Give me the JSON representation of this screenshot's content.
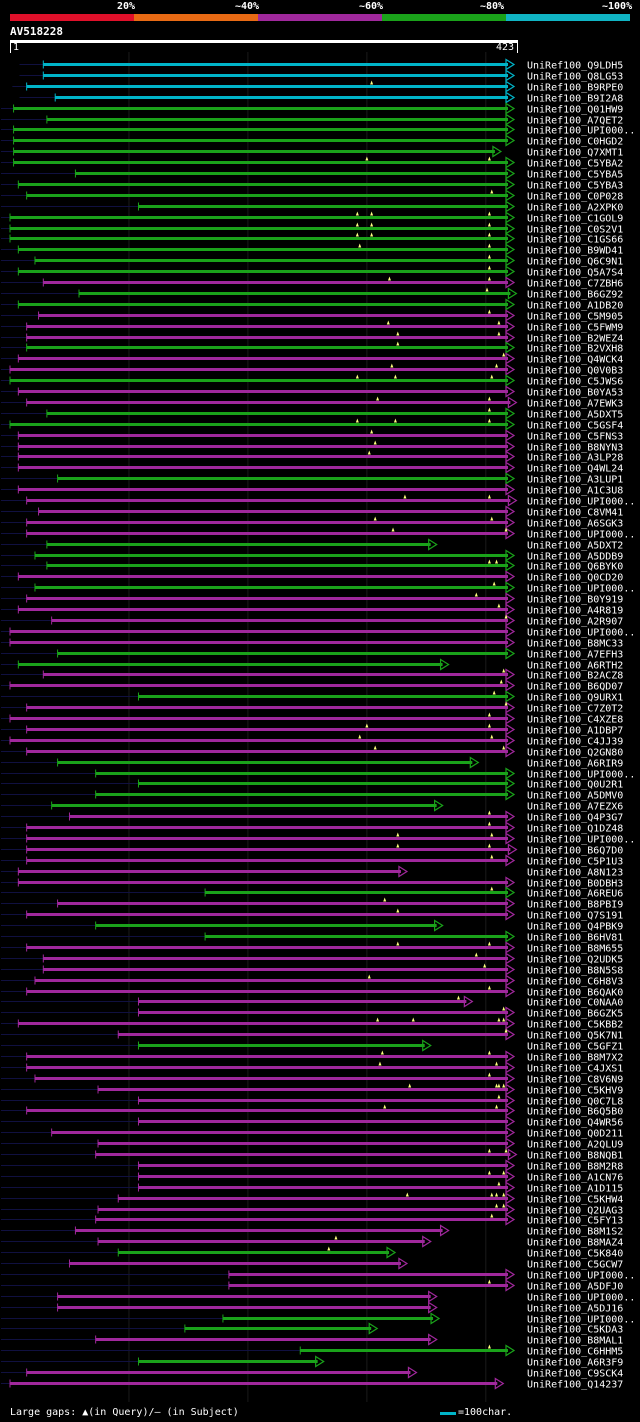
{
  "legend": {
    "bins": [
      {
        "label": "20%",
        "color": "#e0102a"
      },
      {
        "label": "~40%",
        "color": "#e86a14"
      },
      {
        "label": "~60%",
        "color": "#a0289c"
      },
      {
        "label": "~80%",
        "color": "#1aa21a"
      },
      {
        "label": "~100%",
        "color": "#10b4c4"
      }
    ]
  },
  "query": {
    "name": "AV518228",
    "start_label": "1",
    "end_label": "423",
    "length": 423
  },
  "colors": {
    "cyan": "#00b4c8",
    "green": "#1aa21a",
    "magenta": "#a0289c",
    "grid": "#1a1a1a",
    "tail": "#101040",
    "gap_marker": "#ffff80"
  },
  "footer": {
    "gaps_text": "Large gaps: ▲(in Query)/– (in Subject)",
    "scale_text": "=100char."
  },
  "hits": [
    {
      "name": "UniRef100_Q9LDH5",
      "c": "cyan",
      "s": 29,
      "e": 423,
      "t": 9
    },
    {
      "name": "UniRef100_Q8LG53",
      "c": "cyan",
      "s": 29,
      "e": 423,
      "t": 9
    },
    {
      "name": "UniRef100_B9RPE0",
      "c": "cyan",
      "s": 15,
      "e": 423,
      "t": 3,
      "g": [
        305
      ]
    },
    {
      "name": "UniRef100_B9I2A8",
      "c": "cyan",
      "s": 39,
      "e": 423,
      "t": 9
    },
    {
      "name": "UniRef100_Q01HW9",
      "c": "green",
      "s": 4,
      "e": 423,
      "t": 0
    },
    {
      "name": "UniRef100_A7QET2",
      "c": "green",
      "s": 32,
      "e": 423,
      "t": 0
    },
    {
      "name": "UniRef100_UPI000..",
      "c": "green",
      "s": 4,
      "e": 423,
      "t": 0
    },
    {
      "name": "UniRef100_C0HGD2",
      "c": "green",
      "s": 4,
      "e": 423,
      "t": 0
    },
    {
      "name": "UniRef100_Q7XMT1",
      "c": "green",
      "s": 4,
      "e": 412,
      "t": 0
    },
    {
      "name": "UniRef100_C5YBA2",
      "c": "green",
      "s": 4,
      "e": 423,
      "t": 0,
      "g": [
        301,
        404
      ]
    },
    {
      "name": "UniRef100_C5YBA5",
      "c": "green",
      "s": 56,
      "e": 423,
      "t": 0
    },
    {
      "name": "UniRef100_C5YBA3",
      "c": "green",
      "s": 8,
      "e": 423,
      "t": 0
    },
    {
      "name": "UniRef100_C0P028",
      "c": "green",
      "s": 15,
      "e": 423,
      "t": 0,
      "g": [
        406
      ]
    },
    {
      "name": "UniRef100_A2XPK0",
      "c": "green",
      "s": 109,
      "e": 423,
      "t": 0
    },
    {
      "name": "UniRef100_C1GOL9",
      "c": "green",
      "s": 1,
      "e": 423,
      "t": 0,
      "g": [
        293,
        305,
        404
      ]
    },
    {
      "name": "UniRef100_C0S2V1",
      "c": "green",
      "s": 1,
      "e": 423,
      "t": 0,
      "g": [
        293,
        305,
        404
      ]
    },
    {
      "name": "UniRef100_C1GS66",
      "c": "green",
      "s": 1,
      "e": 423,
      "t": 0,
      "g": [
        293,
        305,
        404
      ]
    },
    {
      "name": "UniRef100_B9WD41",
      "c": "green",
      "s": 8,
      "e": 423,
      "t": 0,
      "g": [
        295,
        404
      ]
    },
    {
      "name": "UniRef100_Q6C9N1",
      "c": "green",
      "s": 22,
      "e": 423,
      "t": 0,
      "g": [
        404
      ]
    },
    {
      "name": "UniRef100_Q5A7S4",
      "c": "green",
      "s": 8,
      "e": 423,
      "t": 0,
      "g": [
        404
      ]
    },
    {
      "name": "UniRef100_C7ZBH6",
      "c": "magenta",
      "s": 29,
      "e": 423,
      "t": 0,
      "g": [
        320,
        404
      ]
    },
    {
      "name": "UniRef100_B6GZ92",
      "c": "green",
      "s": 59,
      "e": 425,
      "t": 0,
      "g": [
        402
      ]
    },
    {
      "name": "UniRef100_A1DB20",
      "c": "green",
      "s": 8,
      "e": 423,
      "t": 0
    },
    {
      "name": "UniRef100_C5M905",
      "c": "magenta",
      "s": 25,
      "e": 423,
      "t": 0,
      "g": [
        404
      ]
    },
    {
      "name": "UniRef100_C5FWM9",
      "c": "magenta",
      "s": 15,
      "e": 423,
      "t": 0,
      "g": [
        319,
        412
      ]
    },
    {
      "name": "UniRef100_B2WEZ4",
      "c": "magenta",
      "s": 15,
      "e": 423,
      "t": 0,
      "g": [
        327,
        412
      ]
    },
    {
      "name": "UniRef100_B2VXH8",
      "c": "green",
      "s": 15,
      "e": 423,
      "t": 0,
      "g": [
        327
      ]
    },
    {
      "name": "UniRef100_Q4WCK4",
      "c": "magenta",
      "s": 8,
      "e": 423,
      "t": 0,
      "g": [
        416
      ]
    },
    {
      "name": "UniRef100_Q0V0B3",
      "c": "magenta",
      "s": 1,
      "e": 423,
      "t": 0,
      "g": [
        322,
        410
      ]
    },
    {
      "name": "UniRef100_C5JWS6",
      "c": "green",
      "s": 1,
      "e": 423,
      "t": 0,
      "g": [
        293,
        325,
        406
      ]
    },
    {
      "name": "UniRef100_B0YA53",
      "c": "magenta",
      "s": 8,
      "e": 423,
      "t": 0
    },
    {
      "name": "UniRef100_A7EWK3",
      "c": "magenta",
      "s": 15,
      "e": 425,
      "t": 0,
      "g": [
        310,
        404
      ]
    },
    {
      "name": "UniRef100_A5DXT5",
      "c": "green",
      "s": 32,
      "e": 423,
      "t": 0,
      "g": [
        404
      ]
    },
    {
      "name": "UniRef100_C5GSF4",
      "c": "green",
      "s": 1,
      "e": 423,
      "t": 0,
      "g": [
        293,
        325,
        404
      ]
    },
    {
      "name": "UniRef100_C5FNS3",
      "c": "magenta",
      "s": 8,
      "e": 423,
      "t": 0,
      "g": [
        305
      ]
    },
    {
      "name": "UniRef100_B8NYN3",
      "c": "magenta",
      "s": 8,
      "e": 423,
      "t": 0,
      "g": [
        308
      ]
    },
    {
      "name": "UniRef100_A3LP28",
      "c": "magenta",
      "s": 8,
      "e": 423,
      "t": 0,
      "g": [
        303
      ]
    },
    {
      "name": "UniRef100_Q4WL24",
      "c": "magenta",
      "s": 8,
      "e": 423,
      "t": 0
    },
    {
      "name": "UniRef100_A3LUP1",
      "c": "green",
      "s": 41,
      "e": 423,
      "t": 0
    },
    {
      "name": "UniRef100_A1C3U8",
      "c": "magenta",
      "s": 8,
      "e": 423,
      "t": 0
    },
    {
      "name": "UniRef100_UPI000..",
      "c": "magenta",
      "s": 15,
      "e": 425,
      "t": 0,
      "g": [
        333,
        404
      ]
    },
    {
      "name": "UniRef100_C8VM41",
      "c": "magenta",
      "s": 25,
      "e": 423,
      "t": 0
    },
    {
      "name": "UniRef100_A6SGK3",
      "c": "magenta",
      "s": 15,
      "e": 423,
      "t": 0,
      "g": [
        308,
        406
      ]
    },
    {
      "name": "UniRef100_UPI000..",
      "c": "magenta",
      "s": 15,
      "e": 423,
      "t": 0,
      "g": [
        323,
        418
      ]
    },
    {
      "name": "UniRef100_A5DXT2",
      "c": "green",
      "s": 32,
      "e": 358,
      "t": 0
    },
    {
      "name": "UniRef100_A5DDB9",
      "c": "green",
      "s": 22,
      "e": 423,
      "t": 0
    },
    {
      "name": "UniRef100_Q6BYK0",
      "c": "green",
      "s": 32,
      "e": 423,
      "t": 0,
      "g": [
        404,
        410
      ]
    },
    {
      "name": "UniRef100_Q0CD20",
      "c": "magenta",
      "s": 8,
      "e": 423,
      "t": 0
    },
    {
      "name": "UniRef100_UPI000..",
      "c": "green",
      "s": 22,
      "e": 423,
      "t": 0,
      "g": [
        408
      ]
    },
    {
      "name": "UniRef100_B0Y919",
      "c": "magenta",
      "s": 15,
      "e": 423,
      "t": 0,
      "g": [
        393
      ]
    },
    {
      "name": "UniRef100_A4R819",
      "c": "magenta",
      "s": 8,
      "e": 423,
      "t": 0,
      "g": [
        412
      ]
    },
    {
      "name": "UniRef100_A2R907",
      "c": "magenta",
      "s": 36,
      "e": 423,
      "t": 0,
      "g": [
        418
      ]
    },
    {
      "name": "UniRef100_UPI000..",
      "c": "magenta",
      "s": 1,
      "e": 423,
      "t": 0
    },
    {
      "name": "UniRef100_B8MC33",
      "c": "magenta",
      "s": 1,
      "e": 423,
      "t": 0
    },
    {
      "name": "UniRef100_A7EFH3",
      "c": "green",
      "s": 41,
      "e": 423,
      "t": 0
    },
    {
      "name": "UniRef100_A6RTH2",
      "c": "green",
      "s": 8,
      "e": 368,
      "t": 0
    },
    {
      "name": "UniRef100_B2ACZ8",
      "c": "magenta",
      "s": 29,
      "e": 423,
      "t": 0,
      "g": [
        416
      ]
    },
    {
      "name": "UniRef100_B6QD07",
      "c": "magenta",
      "s": 1,
      "e": 423,
      "t": 0,
      "g": [
        414
      ]
    },
    {
      "name": "UniRef100_Q9URX1",
      "c": "green",
      "s": 109,
      "e": 423,
      "t": 0,
      "g": [
        408
      ]
    },
    {
      "name": "UniRef100_C7Z0T2",
      "c": "magenta",
      "s": 15,
      "e": 423,
      "t": 0,
      "g": [
        418
      ]
    },
    {
      "name": "UniRef100_C4XZE8",
      "c": "magenta",
      "s": 1,
      "e": 423,
      "t": 0,
      "g": [
        404
      ]
    },
    {
      "name": "UniRef100_A1DBP7",
      "c": "magenta",
      "s": 15,
      "e": 423,
      "t": 0,
      "g": [
        301,
        404
      ]
    },
    {
      "name": "UniRef100_C4JJ39",
      "c": "magenta",
      "s": 1,
      "e": 423,
      "t": 0,
      "g": [
        295,
        406
      ]
    },
    {
      "name": "UniRef100_Q2GN80",
      "c": "magenta",
      "s": 15,
      "e": 423,
      "t": 0,
      "g": [
        308,
        416
      ]
    },
    {
      "name": "UniRef100_A6RIR9",
      "c": "green",
      "s": 41,
      "e": 393,
      "t": 0
    },
    {
      "name": "UniRef100_UPI000..",
      "c": "green",
      "s": 73,
      "e": 423,
      "t": 0
    },
    {
      "name": "UniRef100_Q0U2R1",
      "c": "green",
      "s": 109,
      "e": 423,
      "t": 0
    },
    {
      "name": "UniRef100_A5DMV0",
      "c": "green",
      "s": 73,
      "e": 423,
      "t": 0
    },
    {
      "name": "UniRef100_A7EZX6",
      "c": "green",
      "s": 36,
      "e": 363,
      "t": 0
    },
    {
      "name": "UniRef100_Q4P3G7",
      "c": "magenta",
      "s": 51,
      "e": 423,
      "t": 0,
      "g": [
        404
      ]
    },
    {
      "name": "UniRef100_Q1DZ48",
      "c": "magenta",
      "s": 15,
      "e": 423,
      "t": 0,
      "g": [
        404
      ]
    },
    {
      "name": "UniRef100_UPI000..",
      "c": "magenta",
      "s": 15,
      "e": 423,
      "t": 0,
      "g": [
        327,
        406
      ]
    },
    {
      "name": "UniRef100_B6Q7D0",
      "c": "magenta",
      "s": 15,
      "e": 425,
      "t": 0,
      "g": [
        327,
        404
      ]
    },
    {
      "name": "UniRef100_C5P1U3",
      "c": "magenta",
      "s": 15,
      "e": 423,
      "t": 0,
      "g": [
        406
      ]
    },
    {
      "name": "UniRef100_A8N123",
      "c": "magenta",
      "s": 8,
      "e": 333,
      "t": 0
    },
    {
      "name": "UniRef100_B0DBH3",
      "c": "magenta",
      "s": 8,
      "e": 423,
      "t": 0
    },
    {
      "name": "UniRef100_A6REU6",
      "c": "green",
      "s": 165,
      "e": 423,
      "t": 0,
      "g": [
        406
      ]
    },
    {
      "name": "UniRef100_B8PBI9",
      "c": "magenta",
      "s": 41,
      "e": 423,
      "t": 0,
      "g": [
        316
      ]
    },
    {
      "name": "UniRef100_Q7S191",
      "c": "magenta",
      "s": 15,
      "e": 423,
      "t": 0,
      "g": [
        327
      ]
    },
    {
      "name": "UniRef100_Q4PBK9",
      "c": "green",
      "s": 73,
      "e": 363,
      "t": 0
    },
    {
      "name": "UniRef100_B6HV81",
      "c": "green",
      "s": 165,
      "e": 423,
      "t": 0
    },
    {
      "name": "UniRef100_B8M655",
      "c": "magenta",
      "s": 15,
      "e": 423,
      "t": 0,
      "g": [
        327,
        404
      ]
    },
    {
      "name": "UniRef100_Q2UDK5",
      "c": "magenta",
      "s": 29,
      "e": 423,
      "t": 0,
      "g": [
        393
      ]
    },
    {
      "name": "UniRef100_B8N5S8",
      "c": "magenta",
      "s": 29,
      "e": 423,
      "t": 0,
      "g": [
        400
      ]
    },
    {
      "name": "UniRef100_C6H8V3",
      "c": "magenta",
      "s": 22,
      "e": 423,
      "t": 0,
      "g": [
        303
      ]
    },
    {
      "name": "UniRef100_B6QAK0",
      "c": "magenta",
      "s": 15,
      "e": 423,
      "t": 0,
      "g": [
        404
      ]
    },
    {
      "name": "UniRef100_C0NAA0",
      "c": "magenta",
      "s": 109,
      "e": 388,
      "t": 0,
      "g": [
        378
      ]
    },
    {
      "name": "UniRef100_B6GZK5",
      "c": "magenta",
      "s": 109,
      "e": 423,
      "t": 0,
      "g": [
        416
      ]
    },
    {
      "name": "UniRef100_C5KBB2",
      "c": "magenta",
      "s": 8,
      "e": 423,
      "t": 0,
      "g": [
        310,
        340,
        412,
        416
      ]
    },
    {
      "name": "UniRef100_Q5K7N1",
      "c": "magenta",
      "s": 92,
      "e": 423,
      "t": 0,
      "g": [
        418
      ]
    },
    {
      "name": "UniRef100_C5GFZ1",
      "c": "green",
      "s": 109,
      "e": 353,
      "t": 0
    },
    {
      "name": "UniRef100_B8M7X2",
      "c": "magenta",
      "s": 15,
      "e": 423,
      "t": 0,
      "g": [
        314,
        404
      ]
    },
    {
      "name": "UniRef100_C4JXS1",
      "c": "magenta",
      "s": 15,
      "e": 423,
      "t": 0,
      "g": [
        312,
        410
      ]
    },
    {
      "name": "UniRef100_C8V6N9",
      "c": "magenta",
      "s": 22,
      "e": 423,
      "t": 0,
      "g": [
        404
      ]
    },
    {
      "name": "UniRef100_C5KHV9",
      "c": "magenta",
      "s": 75,
      "e": 423,
      "t": 0,
      "g": [
        337,
        410,
        412,
        416
      ]
    },
    {
      "name": "UniRef100_Q0C7L8",
      "c": "magenta",
      "s": 109,
      "e": 423,
      "t": 0,
      "g": [
        412
      ]
    },
    {
      "name": "UniRef100_B6Q5B0",
      "c": "magenta",
      "s": 15,
      "e": 423,
      "t": 0,
      "g": [
        316,
        410
      ]
    },
    {
      "name": "UniRef100_Q4WR56",
      "c": "magenta",
      "s": 109,
      "e": 423,
      "t": 0
    },
    {
      "name": "UniRef100_Q0D211",
      "c": "magenta",
      "s": 36,
      "e": 423,
      "t": 0
    },
    {
      "name": "UniRef100_A2QLU9",
      "c": "magenta",
      "s": 75,
      "e": 423,
      "t": 0
    },
    {
      "name": "UniRef100_B8NQB1",
      "c": "magenta",
      "s": 73,
      "e": 425,
      "t": 0,
      "g": [
        404,
        418
      ]
    },
    {
      "name": "UniRef100_B8M2R8",
      "c": "magenta",
      "s": 109,
      "e": 423,
      "t": 0
    },
    {
      "name": "UniRef100_A1CN76",
      "c": "magenta",
      "s": 109,
      "e": 423,
      "t": 0,
      "g": [
        404,
        416
      ]
    },
    {
      "name": "UniRef100_A1D115",
      "c": "magenta",
      "s": 109,
      "e": 423,
      "t": 0,
      "g": [
        412
      ]
    },
    {
      "name": "UniRef100_C5KHW4",
      "c": "magenta",
      "s": 92,
      "e": 423,
      "t": 0,
      "g": [
        335,
        406,
        410,
        416
      ]
    },
    {
      "name": "UniRef100_Q2UAG3",
      "c": "magenta",
      "s": 75,
      "e": 423,
      "t": 0,
      "g": [
        410,
        416
      ]
    },
    {
      "name": "UniRef100_C5FY13",
      "c": "magenta",
      "s": 73,
      "e": 423,
      "t": 0,
      "g": [
        406
      ]
    },
    {
      "name": "UniRef100_B8M1S2",
      "c": "magenta",
      "s": 56,
      "e": 368,
      "t": 0
    },
    {
      "name": "UniRef100_B8MAZ4",
      "c": "magenta",
      "s": 75,
      "e": 353,
      "t": 0,
      "g": [
        275
      ]
    },
    {
      "name": "UniRef100_C5K840",
      "c": "green",
      "s": 92,
      "e": 323,
      "t": 0,
      "g": [
        269
      ]
    },
    {
      "name": "UniRef100_C5GCW7",
      "c": "magenta",
      "s": 51,
      "e": 333,
      "t": 0
    },
    {
      "name": "UniRef100_UPI000..",
      "c": "magenta",
      "s": 185,
      "e": 423,
      "t": 0
    },
    {
      "name": "UniRef100_A5DFJ0",
      "c": "magenta",
      "s": 185,
      "e": 423,
      "t": 0,
      "g": [
        404
      ]
    },
    {
      "name": "UniRef100_UPI000..",
      "c": "magenta",
      "s": 41,
      "e": 358,
      "t": 0
    },
    {
      "name": "UniRef100_A5DJ16",
      "c": "magenta",
      "s": 41,
      "e": 358,
      "t": 0
    },
    {
      "name": "UniRef100_UPI000..",
      "c": "green",
      "s": 180,
      "e": 360,
      "t": 0
    },
    {
      "name": "UniRef100_C5KDA3",
      "c": "green",
      "s": 148,
      "e": 308,
      "t": 0
    },
    {
      "name": "UniRef100_B8MAL1",
      "c": "magenta",
      "s": 73,
      "e": 358,
      "t": 0
    },
    {
      "name": "UniRef100_C6HHM5",
      "c": "green",
      "s": 245,
      "e": 423,
      "t": 0,
      "g": [
        404
      ]
    },
    {
      "name": "UniRef100_A6R3F9",
      "c": "green",
      "s": 109,
      "e": 263,
      "t": 0
    },
    {
      "name": "UniRef100_C9SCK4",
      "c": "magenta",
      "s": 15,
      "e": 341,
      "t": 0
    },
    {
      "name": "UniRef100_Q14237",
      "c": "magenta",
      "s": 1,
      "e": 414,
      "t": 0
    }
  ]
}
